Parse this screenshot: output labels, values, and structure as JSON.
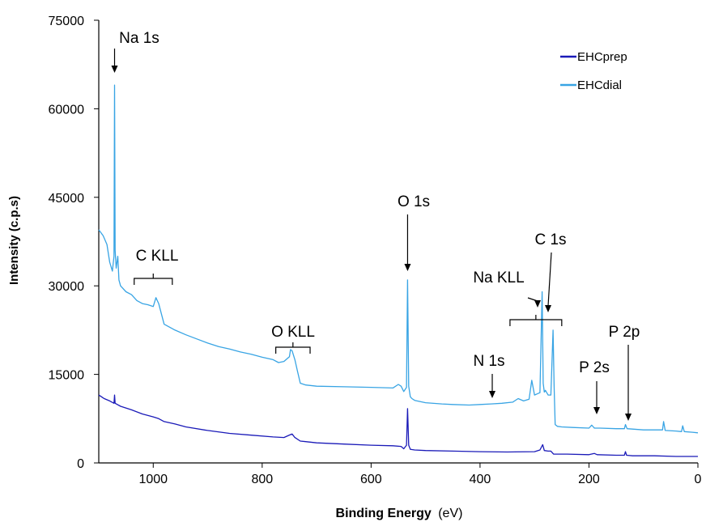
{
  "chart_data": {
    "type": "line",
    "title": "",
    "xlabel_bold": "Binding Energy",
    "xlabel_unit": "(eV)",
    "ylabel": "Intensity (c.p.s)",
    "xlim": [
      1100,
      0
    ],
    "ylim": [
      0,
      75000
    ],
    "x_ticks": [
      1000,
      800,
      600,
      400,
      200,
      0
    ],
    "x_tick_labels": [
      "1000",
      "800",
      "600",
      "400",
      "200",
      "0"
    ],
    "y_ticks": [
      0,
      15000,
      30000,
      45000,
      60000,
      75000
    ],
    "y_tick_labels": [
      "0",
      "15000",
      "30000",
      "45000",
      "60000",
      "75000"
    ],
    "grid": false,
    "legend": "top-right",
    "series": [
      {
        "name": "EHCprep",
        "color": "#1a1ab8",
        "x": [
          1100,
          1090,
          1080,
          1072,
          1071,
          1070,
          1060,
          1040,
          1020,
          1000,
          990,
          980,
          960,
          940,
          900,
          860,
          820,
          780,
          760,
          748,
          745,
          740,
          730,
          720,
          700,
          650,
          600,
          560,
          545,
          540,
          535,
          533,
          531,
          528,
          520,
          500,
          450,
          400,
          350,
          300,
          290,
          285,
          284,
          282,
          275,
          270,
          265,
          240,
          200,
          190,
          185,
          150,
          135,
          133,
          131,
          120,
          80,
          40,
          0
        ],
        "y": [
          11500,
          10900,
          10500,
          10100,
          11500,
          10100,
          9600,
          9000,
          8300,
          7800,
          7500,
          7000,
          6600,
          6100,
          5500,
          5000,
          4700,
          4400,
          4300,
          4800,
          4900,
          4300,
          3700,
          3600,
          3400,
          3200,
          3000,
          2900,
          2800,
          2400,
          3000,
          9200,
          3000,
          2300,
          2200,
          2100,
          2000,
          1900,
          1850,
          1900,
          2200,
          3100,
          2800,
          2100,
          2000,
          2000,
          1500,
          1500,
          1400,
          1600,
          1400,
          1300,
          1300,
          1900,
          1300,
          1200,
          1200,
          1100,
          1100
        ]
      },
      {
        "name": "EHCdial",
        "color": "#38a4e4",
        "x": [
          1100,
          1092,
          1085,
          1080,
          1075,
          1072,
          1071,
          1070,
          1068,
          1065,
          1063,
          1060,
          1050,
          1040,
          1030,
          1020,
          1010,
          1000,
          995,
          990,
          980,
          960,
          940,
          920,
          900,
          880,
          860,
          840,
          820,
          800,
          780,
          770,
          760,
          750,
          748,
          745,
          740,
          735,
          730,
          720,
          700,
          650,
          600,
          560,
          550,
          545,
          540,
          535,
          533,
          531,
          528,
          525,
          520,
          500,
          470,
          450,
          420,
          400,
          380,
          360,
          340,
          330,
          320,
          310,
          305,
          300,
          295,
          290,
          286,
          284,
          282,
          280,
          275,
          270,
          266,
          264,
          262,
          258,
          250,
          230,
          200,
          195,
          192,
          190,
          180,
          150,
          135,
          133,
          130,
          100,
          75,
          65,
          63,
          60,
          40,
          30,
          28,
          25,
          10,
          0
        ],
        "y": [
          39500,
          38500,
          37000,
          34000,
          32500,
          35000,
          64000,
          36000,
          33000,
          35000,
          31000,
          30000,
          29000,
          28500,
          27500,
          27000,
          26800,
          26500,
          28000,
          27000,
          23500,
          22500,
          21700,
          21000,
          20300,
          19700,
          19300,
          18800,
          18400,
          17900,
          17500,
          17000,
          17200,
          18000,
          19200,
          19000,
          17500,
          15500,
          13500,
          13200,
          13000,
          12900,
          12800,
          12700,
          13300,
          13000,
          12100,
          12800,
          31000,
          13000,
          11200,
          10900,
          10600,
          10200,
          10000,
          9900,
          9800,
          9900,
          10000,
          10100,
          10300,
          10900,
          10500,
          10800,
          14000,
          11500,
          11700,
          11900,
          29000,
          13500,
          12000,
          12300,
          11500,
          11500,
          22500,
          13000,
          6500,
          6200,
          6100,
          6000,
          5900,
          6400,
          6100,
          5900,
          5900,
          5800,
          5800,
          6500,
          5800,
          5600,
          5600,
          5600,
          7000,
          5500,
          5400,
          5300,
          6300,
          5300,
          5200,
          5100
        ]
      }
    ],
    "annotations": [
      {
        "text": "Na 1s",
        "x": 1071,
        "y": 64000
      },
      {
        "text": "C KLL",
        "x": 995,
        "y": 28500
      },
      {
        "text": "O KLL",
        "x": 745,
        "y": 19000
      },
      {
        "text": "O 1s",
        "x": 533,
        "y": 31000
      },
      {
        "text": "Na KLL",
        "x": 300,
        "y": 24500
      },
      {
        "text": "C 1s",
        "x": 285,
        "y": 29000
      },
      {
        "text": "N 1s",
        "x": 400,
        "y": 10800
      },
      {
        "text": "P 2s",
        "x": 190,
        "y": 7000
      },
      {
        "text": "P 2p",
        "x": 133,
        "y": 7000
      }
    ]
  }
}
